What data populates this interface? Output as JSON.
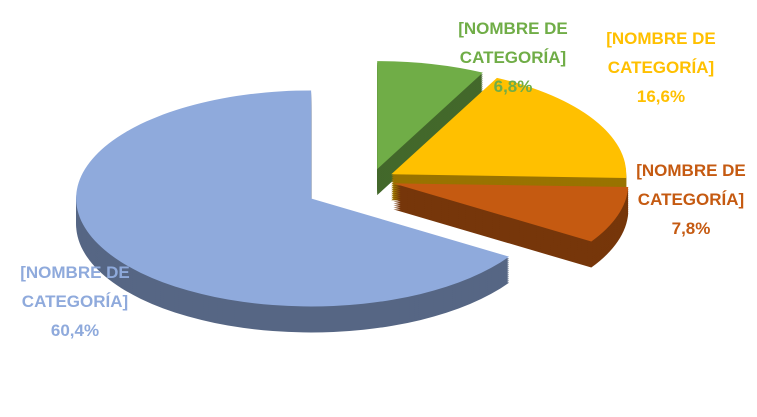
{
  "chart_data": {
    "type": "pie3d",
    "categories": [
      "[NOMBRE DE CATEGORÍA]",
      "[NOMBRE DE CATEGORÍA]",
      "[NOMBRE DE CATEGORÍA]",
      "[NOMBRE DE CATEGORÍA]"
    ],
    "values": [
      6.8,
      16.6,
      7.8,
      60.4
    ],
    "value_labels": [
      "6,8%",
      "16,6%",
      "7,8%",
      "60,4%"
    ],
    "colors": [
      "#70ad47",
      "#ffc000",
      "#c55a11",
      "#8faadc"
    ]
  }
}
